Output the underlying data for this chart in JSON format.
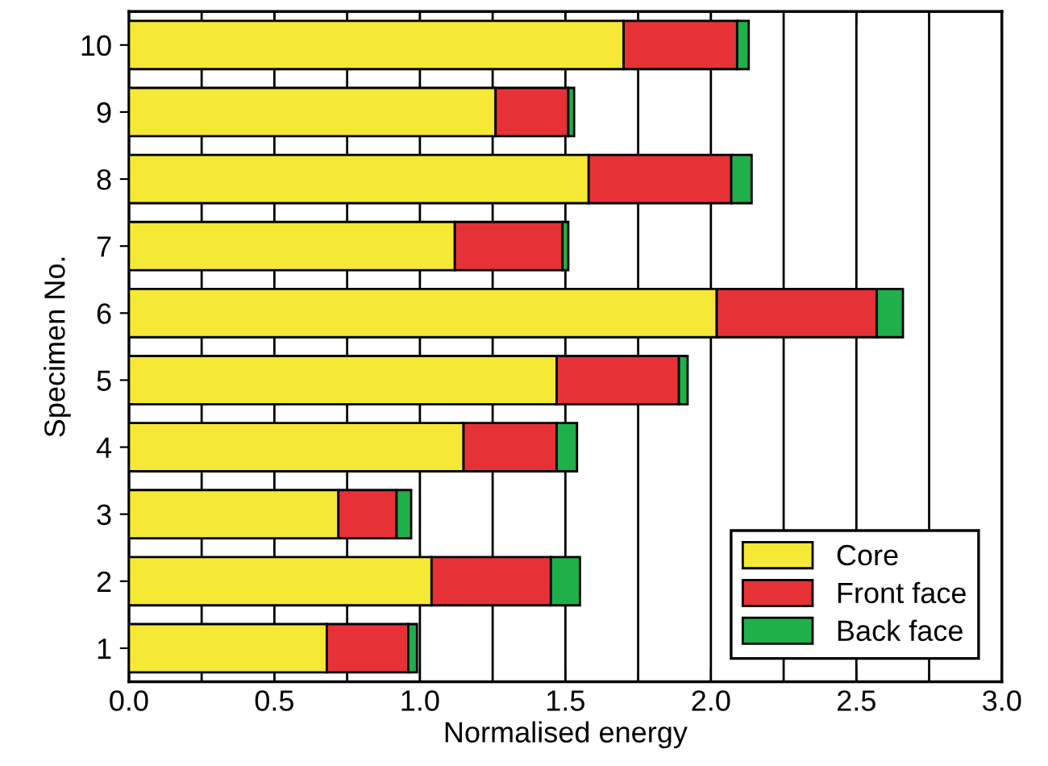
{
  "chart_data": {
    "type": "bar",
    "orientation": "horizontal",
    "stacked": true,
    "xlabel": "Normalised energy",
    "ylabel": "Specimen No.",
    "categories": [
      "10",
      "9",
      "8",
      "7",
      "6",
      "5",
      "4",
      "3",
      "2",
      "1"
    ],
    "series": [
      {
        "name": "Core",
        "color": "#f5e935",
        "values": [
          1.7,
          1.26,
          1.58,
          1.12,
          2.02,
          1.47,
          1.15,
          0.72,
          1.04,
          0.68
        ]
      },
      {
        "name": "Front face",
        "color": "#e63236",
        "values": [
          0.39,
          0.25,
          0.49,
          0.37,
          0.55,
          0.42,
          0.32,
          0.2,
          0.41,
          0.28
        ]
      },
      {
        "name": "Back face",
        "color": "#1fb04a",
        "values": [
          0.04,
          0.02,
          0.07,
          0.02,
          0.09,
          0.03,
          0.07,
          0.05,
          0.1,
          0.03
        ]
      }
    ],
    "xlim": [
      0,
      3
    ],
    "xticks": [
      {
        "value": 0,
        "label": "0.0"
      },
      0.5,
      {
        "value": 1,
        "label": "1.0"
      },
      1.5,
      {
        "value": 2,
        "label": "2.0"
      },
      2.5,
      {
        "value": 3,
        "label": "3.0"
      }
    ],
    "grid": "x",
    "legend": "bottom right"
  }
}
